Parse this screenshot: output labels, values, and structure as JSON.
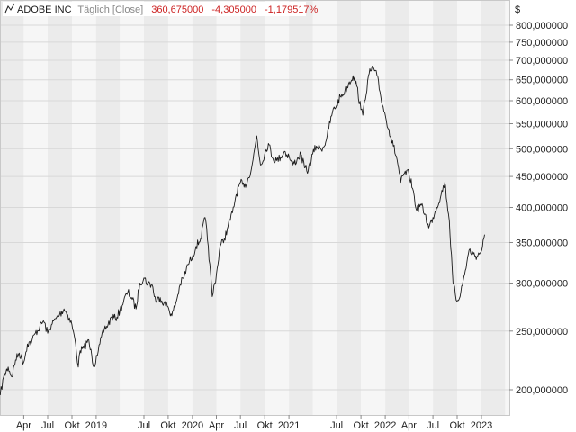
{
  "legend": {
    "instrument": "ADOBE INC",
    "mode": "Täglich [Close]",
    "last": "360,675000",
    "change": "-4,305000",
    "change_pct": "-1,179517%"
  },
  "colors": {
    "line": "#1a1a1a",
    "negative": "#cc2222",
    "muted": "#888888",
    "band_a": "#ebebeb",
    "band_b": "#f6f6f6",
    "grid": "#d8d8d8"
  },
  "chart_data": {
    "type": "line",
    "title": "",
    "xlabel": "",
    "ylabel": "",
    "y_unit": "$",
    "y_scale": "log",
    "ylim": [
      185,
      850
    ],
    "grid": true,
    "legend_position": "top-left",
    "y_ticks": [
      {
        "value": 200,
        "label": "200,000000"
      },
      {
        "value": 250,
        "label": "250,000000"
      },
      {
        "value": 300,
        "label": "300,000000"
      },
      {
        "value": 350,
        "label": "350,000000"
      },
      {
        "value": 400,
        "label": "400,000000"
      },
      {
        "value": 450,
        "label": "450,000000"
      },
      {
        "value": 500,
        "label": "500,000000"
      },
      {
        "value": 550,
        "label": "550,000000"
      },
      {
        "value": 600,
        "label": "600,000000"
      },
      {
        "value": 650,
        "label": "650,000000"
      },
      {
        "value": 700,
        "label": "700,000000"
      },
      {
        "value": 750,
        "label": "750,000000"
      },
      {
        "value": 800,
        "label": "800,000000"
      }
    ],
    "x_ticks": [
      {
        "date": "2018-04-01",
        "label": "Apr"
      },
      {
        "date": "2018-07-01",
        "label": "Jul"
      },
      {
        "date": "2018-10-01",
        "label": "Okt"
      },
      {
        "date": "2019-01-01",
        "label": "2019"
      },
      {
        "date": "2019-07-01",
        "label": "Jul"
      },
      {
        "date": "2019-10-01",
        "label": "Okt"
      },
      {
        "date": "2020-01-01",
        "label": "2020"
      },
      {
        "date": "2020-04-01",
        "label": "Apr"
      },
      {
        "date": "2020-07-01",
        "label": "Jul"
      },
      {
        "date": "2020-10-01",
        "label": "Okt"
      },
      {
        "date": "2021-01-01",
        "label": "2021"
      },
      {
        "date": "2021-07-01",
        "label": "Jul"
      },
      {
        "date": "2021-10-01",
        "label": "Okt"
      },
      {
        "date": "2022-01-01",
        "label": "2022"
      },
      {
        "date": "2022-04-01",
        "label": "Apr"
      },
      {
        "date": "2022-07-01",
        "label": "Jul"
      },
      {
        "date": "2022-10-01",
        "label": "Okt"
      },
      {
        "date": "2023-01-01",
        "label": "2023"
      }
    ],
    "series": [
      {
        "values": [
          [
            "2018-01-02",
            196
          ],
          [
            "2018-01-15",
            210
          ],
          [
            "2018-02-01",
            218
          ],
          [
            "2018-02-15",
            210
          ],
          [
            "2018-03-01",
            224
          ],
          [
            "2018-03-15",
            230
          ],
          [
            "2018-04-01",
            222
          ],
          [
            "2018-04-15",
            238
          ],
          [
            "2018-05-01",
            240
          ],
          [
            "2018-05-15",
            248
          ],
          [
            "2018-06-01",
            254
          ],
          [
            "2018-06-15",
            260
          ],
          [
            "2018-07-01",
            248
          ],
          [
            "2018-07-15",
            256
          ],
          [
            "2018-08-01",
            262
          ],
          [
            "2018-08-15",
            266
          ],
          [
            "2018-09-01",
            272
          ],
          [
            "2018-09-15",
            266
          ],
          [
            "2018-10-01",
            256
          ],
          [
            "2018-10-15",
            238
          ],
          [
            "2018-10-25",
            218
          ],
          [
            "2018-11-01",
            232
          ],
          [
            "2018-11-15",
            234
          ],
          [
            "2018-12-01",
            242
          ],
          [
            "2018-12-15",
            228
          ],
          [
            "2018-12-24",
            218
          ],
          [
            "2019-01-02",
            228
          ],
          [
            "2019-01-15",
            238
          ],
          [
            "2019-02-01",
            252
          ],
          [
            "2019-02-15",
            256
          ],
          [
            "2019-03-01",
            264
          ],
          [
            "2019-03-15",
            262
          ],
          [
            "2019-04-01",
            270
          ],
          [
            "2019-04-15",
            280
          ],
          [
            "2019-05-01",
            290
          ],
          [
            "2019-05-15",
            284
          ],
          [
            "2019-06-01",
            272
          ],
          [
            "2019-06-15",
            300
          ],
          [
            "2019-07-01",
            306
          ],
          [
            "2019-07-15",
            300
          ],
          [
            "2019-08-01",
            298
          ],
          [
            "2019-08-15",
            280
          ],
          [
            "2019-09-01",
            284
          ],
          [
            "2019-09-15",
            278
          ],
          [
            "2019-10-01",
            274
          ],
          [
            "2019-10-15",
            265
          ],
          [
            "2019-11-01",
            280
          ],
          [
            "2019-11-15",
            298
          ],
          [
            "2019-12-01",
            308
          ],
          [
            "2019-12-15",
            322
          ],
          [
            "2020-01-02",
            333
          ],
          [
            "2020-01-15",
            345
          ],
          [
            "2020-02-01",
            355
          ],
          [
            "2020-02-18",
            385
          ],
          [
            "2020-03-01",
            345
          ],
          [
            "2020-03-16",
            285
          ],
          [
            "2020-04-01",
            310
          ],
          [
            "2020-04-15",
            345
          ],
          [
            "2020-05-01",
            355
          ],
          [
            "2020-05-15",
            372
          ],
          [
            "2020-06-01",
            392
          ],
          [
            "2020-06-15",
            420
          ],
          [
            "2020-07-01",
            440
          ],
          [
            "2020-07-15",
            432
          ],
          [
            "2020-08-01",
            448
          ],
          [
            "2020-08-15",
            472
          ],
          [
            "2020-09-01",
            525
          ],
          [
            "2020-09-15",
            470
          ],
          [
            "2020-10-01",
            490
          ],
          [
            "2020-10-15",
            510
          ],
          [
            "2020-11-01",
            482
          ],
          [
            "2020-11-15",
            478
          ],
          [
            "2020-12-01",
            485
          ],
          [
            "2020-12-15",
            495
          ],
          [
            "2021-01-02",
            485
          ],
          [
            "2021-01-15",
            470
          ],
          [
            "2021-02-01",
            480
          ],
          [
            "2021-02-15",
            490
          ],
          [
            "2021-03-01",
            465
          ],
          [
            "2021-03-15",
            460
          ],
          [
            "2021-04-01",
            490
          ],
          [
            "2021-04-15",
            505
          ],
          [
            "2021-05-01",
            500
          ],
          [
            "2021-05-15",
            505
          ],
          [
            "2021-06-01",
            540
          ],
          [
            "2021-06-15",
            575
          ],
          [
            "2021-07-01",
            590
          ],
          [
            "2021-07-15",
            610
          ],
          [
            "2021-08-01",
            622
          ],
          [
            "2021-08-15",
            640
          ],
          [
            "2021-09-01",
            660
          ],
          [
            "2021-09-15",
            635
          ],
          [
            "2021-10-01",
            580
          ],
          [
            "2021-10-08",
            568
          ],
          [
            "2021-10-15",
            600
          ],
          [
            "2021-11-01",
            665
          ],
          [
            "2021-11-15",
            680
          ],
          [
            "2021-12-01",
            660
          ],
          [
            "2021-12-15",
            610
          ],
          [
            "2022-01-02",
            565
          ],
          [
            "2022-01-15",
            538
          ],
          [
            "2022-02-01",
            505
          ],
          [
            "2022-02-15",
            480
          ],
          [
            "2022-03-01",
            440
          ],
          [
            "2022-03-15",
            455
          ],
          [
            "2022-04-01",
            455
          ],
          [
            "2022-04-15",
            430
          ],
          [
            "2022-05-01",
            395
          ],
          [
            "2022-05-15",
            405
          ],
          [
            "2022-06-01",
            390
          ],
          [
            "2022-06-15",
            370
          ],
          [
            "2022-07-01",
            385
          ],
          [
            "2022-07-15",
            400
          ],
          [
            "2022-08-01",
            420
          ],
          [
            "2022-08-15",
            440
          ],
          [
            "2022-09-01",
            380
          ],
          [
            "2022-09-15",
            300
          ],
          [
            "2022-09-30",
            280
          ],
          [
            "2022-10-15",
            290
          ],
          [
            "2022-11-01",
            315
          ],
          [
            "2022-11-15",
            340
          ],
          [
            "2022-12-01",
            335
          ],
          [
            "2022-12-15",
            332
          ],
          [
            "2023-01-02",
            340
          ],
          [
            "2023-01-10",
            355
          ],
          [
            "2023-01-13",
            360.675
          ]
        ]
      }
    ]
  }
}
